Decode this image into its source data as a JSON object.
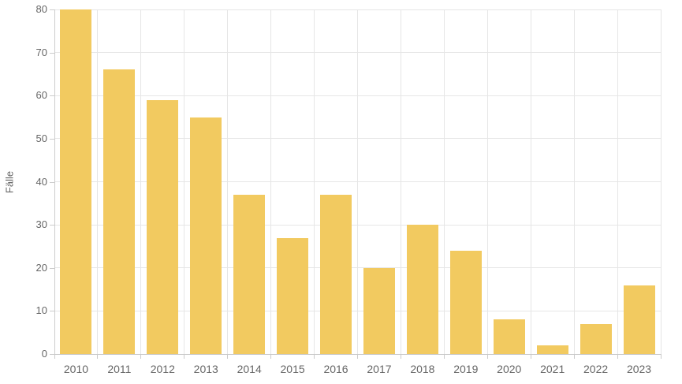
{
  "chart_data": {
    "type": "bar",
    "title": "",
    "xlabel": "",
    "ylabel": "Fälle",
    "categories": [
      "2010",
      "2011",
      "2012",
      "2013",
      "2014",
      "2015",
      "2016",
      "2017",
      "2018",
      "2019",
      "2020",
      "2021",
      "2022",
      "2023"
    ],
    "values": [
      80,
      66,
      59,
      55,
      37,
      27,
      37,
      20,
      30,
      24,
      8,
      2,
      7,
      16
    ],
    "ylim": [
      0,
      80
    ],
    "ytick_step": 10,
    "ytick_labels": [
      "0",
      "10",
      "20",
      "30",
      "40",
      "50",
      "60",
      "70",
      "80"
    ],
    "grid": true,
    "legend": false
  },
  "colors": {
    "bar": "#F2CA60",
    "grid": "#e6e6e6",
    "axis": "#cccccc",
    "text": "#666666",
    "background": "#ffffff"
  }
}
